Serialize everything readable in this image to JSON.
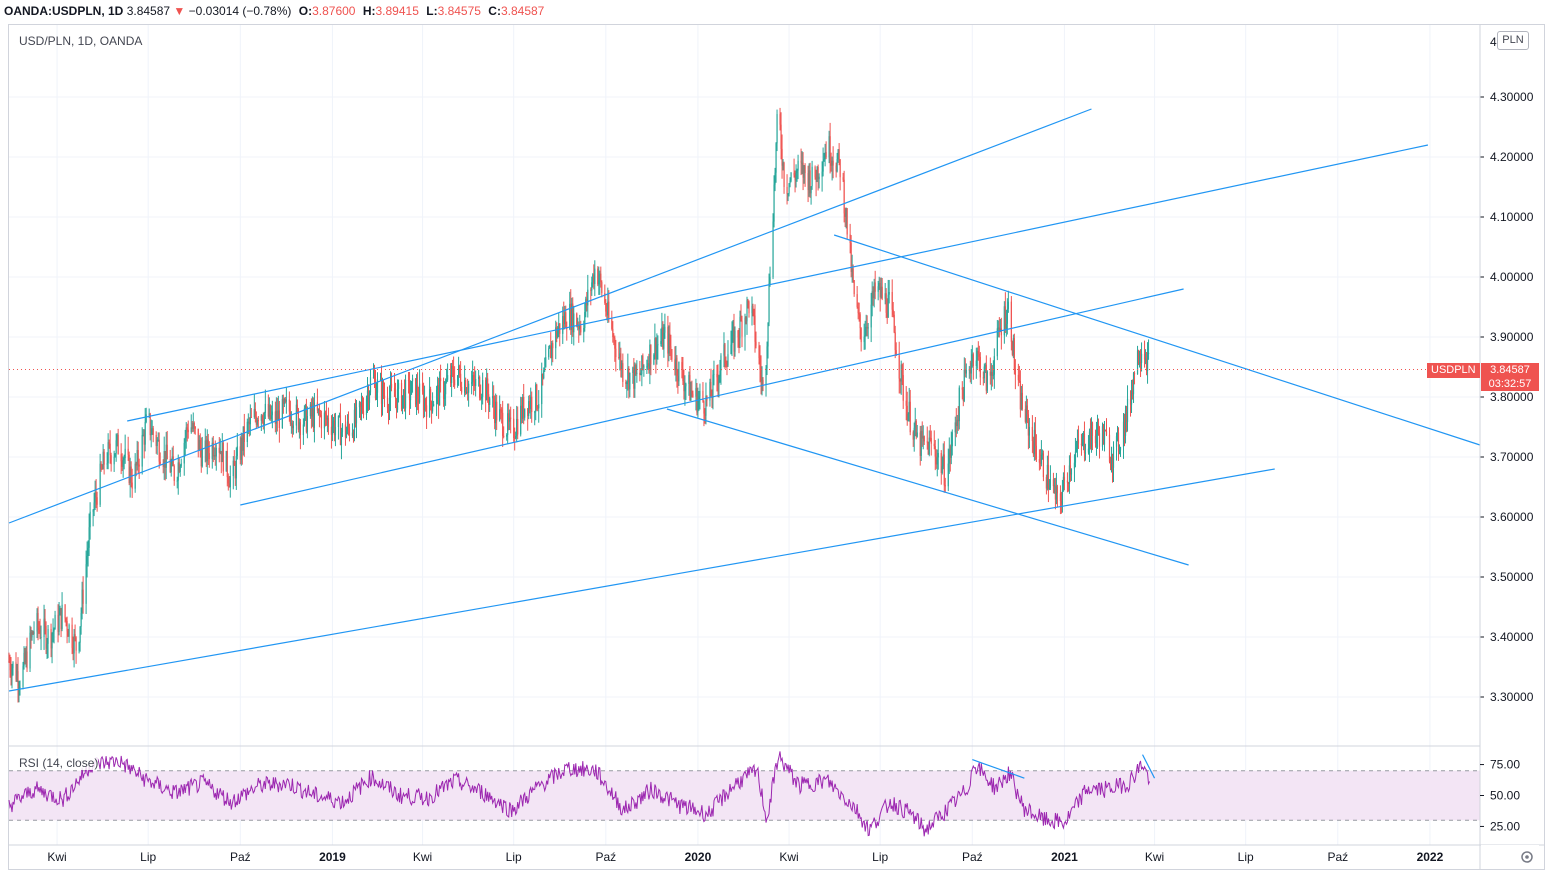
{
  "header": {
    "symbol": "OANDA:USDPLN, 1D",
    "last": "3.84587",
    "change_arrow": "▼",
    "change": "−0.03014 (−0.78%)",
    "o_label": "O:",
    "o_value": "3.87600",
    "h_label": "H:",
    "h_value": "3.89415",
    "l_label": "L:",
    "l_value": "3.84575",
    "c_label": "C:",
    "c_value": "3.84587"
  },
  "legend": {
    "title": "USD/PLN, 1D, OANDA",
    "rsi_title": "RSI (14, close)"
  },
  "price_scale": {
    "unit": "PLN",
    "current_symbol": "USDPLN",
    "current_price": "3.84587",
    "countdown": "03:32:57"
  },
  "colors": {
    "up": "#26a69a",
    "down": "#ef5350",
    "trendline": "#2196f3",
    "rsi_line": "#9c27b0",
    "rsi_band": "#f3e5f5",
    "grid": "#f0f3fa"
  },
  "chart_data": {
    "type": "candlestick",
    "title": "USD/PLN, 1D, OANDA",
    "x_ticks": [
      "Kwi",
      "Lip",
      "Paź",
      "2019",
      "Kwi",
      "Lip",
      "Paź",
      "2020",
      "Kwi",
      "Lip",
      "Paź",
      "2021",
      "Kwi",
      "Lip",
      "Paź",
      "2022"
    ],
    "y_ticks": [
      "3.30000",
      "3.40000",
      "3.50000",
      "3.60000",
      "3.70000",
      "3.80000",
      "3.90000",
      "4.00000",
      "4.10000",
      "4.20000",
      "4.30000"
    ],
    "ylim": [
      3.22,
      4.42
    ],
    "x_range": [
      "2018-02-12",
      "2022-02-20"
    ],
    "grid": true,
    "price_path": [
      [
        "2018-02-12",
        3.36
      ],
      [
        "2018-02-24",
        3.33
      ],
      [
        "2018-03-10",
        3.42
      ],
      [
        "2018-03-24",
        3.4
      ],
      [
        "2018-04-07",
        3.44
      ],
      [
        "2018-04-21",
        3.38
      ],
      [
        "2018-05-05",
        3.6
      ],
      [
        "2018-05-19",
        3.7
      ],
      [
        "2018-06-02",
        3.72
      ],
      [
        "2018-06-16",
        3.66
      ],
      [
        "2018-06-30",
        3.76
      ],
      [
        "2018-07-14",
        3.71
      ],
      [
        "2018-07-28",
        3.67
      ],
      [
        "2018-08-11",
        3.76
      ],
      [
        "2018-08-25",
        3.7
      ],
      [
        "2018-09-08",
        3.73
      ],
      [
        "2018-09-22",
        3.66
      ],
      [
        "2018-10-06",
        3.74
      ],
      [
        "2018-10-20",
        3.78
      ],
      [
        "2018-11-03",
        3.76
      ],
      [
        "2018-11-17",
        3.78
      ],
      [
        "2018-12-01",
        3.76
      ],
      [
        "2018-12-15",
        3.77
      ],
      [
        "2018-12-29",
        3.76
      ],
      [
        "2019-01-12",
        3.74
      ],
      [
        "2019-01-26",
        3.76
      ],
      [
        "2019-02-09",
        3.83
      ],
      [
        "2019-02-23",
        3.8
      ],
      [
        "2019-03-09",
        3.8
      ],
      [
        "2019-03-23",
        3.81
      ],
      [
        "2019-04-06",
        3.79
      ],
      [
        "2019-04-20",
        3.81
      ],
      [
        "2019-05-04",
        3.84
      ],
      [
        "2019-05-18",
        3.82
      ],
      [
        "2019-06-01",
        3.82
      ],
      [
        "2019-06-15",
        3.77
      ],
      [
        "2019-06-29",
        3.74
      ],
      [
        "2019-07-13",
        3.79
      ],
      [
        "2019-07-27",
        3.8
      ],
      [
        "2019-08-10",
        3.9
      ],
      [
        "2019-08-24",
        3.94
      ],
      [
        "2019-09-07",
        3.92
      ],
      [
        "2019-09-21",
        4.02
      ],
      [
        "2019-10-05",
        3.92
      ],
      [
        "2019-10-19",
        3.84
      ],
      [
        "2019-11-02",
        3.83
      ],
      [
        "2019-11-16",
        3.88
      ],
      [
        "2019-11-30",
        3.9
      ],
      [
        "2019-12-14",
        3.84
      ],
      [
        "2019-12-28",
        3.8
      ],
      [
        "2020-01-11",
        3.79
      ],
      [
        "2020-01-25",
        3.86
      ],
      [
        "2020-02-08",
        3.9
      ],
      [
        "2020-02-22",
        3.96
      ],
      [
        "2020-03-07",
        3.8
      ],
      [
        "2020-03-14",
        4.05
      ],
      [
        "2020-03-21",
        4.28
      ],
      [
        "2020-03-28",
        4.15
      ],
      [
        "2020-04-11",
        4.18
      ],
      [
        "2020-04-25",
        4.16
      ],
      [
        "2020-05-09",
        4.22
      ],
      [
        "2020-05-23",
        4.18
      ],
      [
        "2020-06-06",
        3.95
      ],
      [
        "2020-06-13",
        3.9
      ],
      [
        "2020-06-27",
        3.98
      ],
      [
        "2020-07-11",
        3.95
      ],
      [
        "2020-07-25",
        3.8
      ],
      [
        "2020-08-08",
        3.72
      ],
      [
        "2020-08-22",
        3.72
      ],
      [
        "2020-09-05",
        3.67
      ],
      [
        "2020-09-19",
        3.8
      ],
      [
        "2020-10-03",
        3.88
      ],
      [
        "2020-10-17",
        3.82
      ],
      [
        "2020-10-31",
        3.93
      ],
      [
        "2020-11-07",
        3.95
      ],
      [
        "2020-11-14",
        3.82
      ],
      [
        "2020-11-28",
        3.74
      ],
      [
        "2020-12-12",
        3.68
      ],
      [
        "2020-12-26",
        3.62
      ],
      [
        "2021-01-09",
        3.7
      ],
      [
        "2021-01-23",
        3.73
      ],
      [
        "2021-02-06",
        3.74
      ],
      [
        "2021-02-20",
        3.7
      ],
      [
        "2021-03-06",
        3.78
      ],
      [
        "2021-03-13",
        3.86
      ],
      [
        "2021-03-20",
        3.89
      ],
      [
        "2021-03-27",
        3.85
      ]
    ],
    "trendlines": [
      {
        "from": [
          "2018-02-12",
          3.59
        ],
        "to": [
          "2021-01-28",
          4.28
        ]
      },
      {
        "from": [
          "2018-06-10",
          3.76
        ],
        "to": [
          "2021-12-30",
          4.22
        ]
      },
      {
        "from": [
          "2018-10-01",
          3.62
        ],
        "to": [
          "2021-04-30",
          3.98
        ]
      },
      {
        "from": [
          "2018-02-12",
          3.31
        ],
        "to": [
          "2021-07-30",
          3.68
        ]
      },
      {
        "from": [
          "2020-05-16",
          4.07
        ],
        "to": [
          "2022-02-20",
          3.72
        ]
      },
      {
        "from": [
          "2019-12-01",
          3.78
        ],
        "to": [
          "2021-05-05",
          3.52
        ]
      }
    ],
    "current_price": 3.84587,
    "rsi": {
      "name": "RSI (14, close)",
      "levels": [
        25,
        50,
        75
      ],
      "band": [
        30,
        70
      ],
      "ylim": [
        10,
        90
      ],
      "path": [
        [
          "2018-02-12",
          42
        ],
        [
          "2018-03-10",
          55
        ],
        [
          "2018-04-07",
          47
        ],
        [
          "2018-05-05",
          75
        ],
        [
          "2018-06-02",
          78
        ],
        [
          "2018-06-30",
          62
        ],
        [
          "2018-07-28",
          52
        ],
        [
          "2018-08-25",
          60
        ],
        [
          "2018-09-22",
          45
        ],
        [
          "2018-10-20",
          58
        ],
        [
          "2018-11-17",
          60
        ],
        [
          "2018-12-15",
          50
        ],
        [
          "2019-01-12",
          45
        ],
        [
          "2019-02-09",
          65
        ],
        [
          "2019-03-09",
          50
        ],
        [
          "2019-04-06",
          48
        ],
        [
          "2019-05-04",
          62
        ],
        [
          "2019-06-01",
          52
        ],
        [
          "2019-06-29",
          38
        ],
        [
          "2019-07-27",
          58
        ],
        [
          "2019-08-24",
          72
        ],
        [
          "2019-09-21",
          70
        ],
        [
          "2019-10-19",
          38
        ],
        [
          "2019-11-16",
          55
        ],
        [
          "2019-12-14",
          42
        ],
        [
          "2020-01-11",
          35
        ],
        [
          "2020-02-08",
          60
        ],
        [
          "2020-02-29",
          70
        ],
        [
          "2020-03-10",
          30
        ],
        [
          "2020-03-21",
          82
        ],
        [
          "2020-04-11",
          58
        ],
        [
          "2020-05-09",
          62
        ],
        [
          "2020-06-06",
          40
        ],
        [
          "2020-06-20",
          22
        ],
        [
          "2020-07-11",
          45
        ],
        [
          "2020-08-01",
          35
        ],
        [
          "2020-08-15",
          22
        ],
        [
          "2020-09-05",
          38
        ],
        [
          "2020-09-26",
          55
        ],
        [
          "2020-10-03",
          76
        ],
        [
          "2020-10-24",
          56
        ],
        [
          "2020-11-07",
          68
        ],
        [
          "2020-11-21",
          40
        ],
        [
          "2020-12-12",
          30
        ],
        [
          "2021-01-02",
          28
        ],
        [
          "2021-01-23",
          55
        ],
        [
          "2021-02-13",
          55
        ],
        [
          "2021-03-06",
          60
        ],
        [
          "2021-03-20",
          76
        ],
        [
          "2021-03-27",
          62
        ]
      ],
      "trendlines": [
        {
          "from": [
            "2020-10-01",
            79
          ],
          "to": [
            "2020-11-22",
            64
          ]
        },
        {
          "from": [
            "2021-03-20",
            83
          ],
          "to": [
            "2021-04-01",
            64
          ]
        }
      ]
    }
  }
}
